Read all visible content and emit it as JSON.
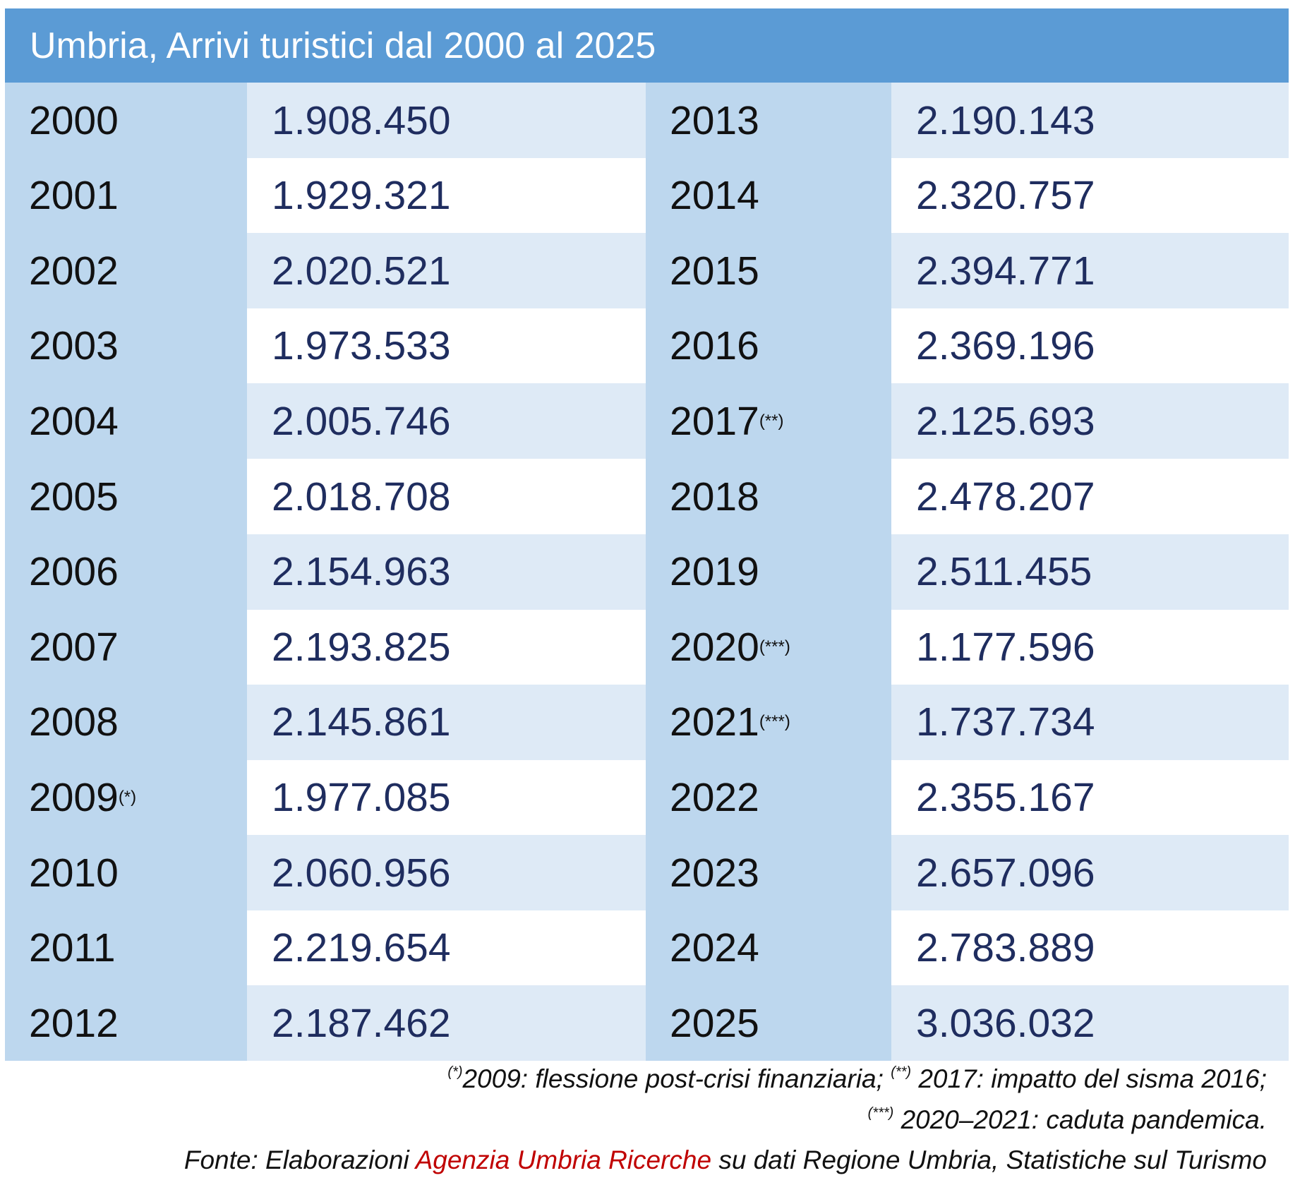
{
  "header": {
    "title": "Umbria, Arrivi turistici dal 2000 al 2025"
  },
  "table": {
    "rows": [
      {
        "year": "2000",
        "value": "1.908.450"
      },
      {
        "year": "2001",
        "value": "1.929.321"
      },
      {
        "year": "2002",
        "value": "2.020.521"
      },
      {
        "year": "2003",
        "value": "1.973.533"
      },
      {
        "year": "2004",
        "value": "2.005.746"
      },
      {
        "year": "2005",
        "value": "2.018.708"
      },
      {
        "year": "2006",
        "value": "2.154.963"
      },
      {
        "year": "2007",
        "value": "2.193.825"
      },
      {
        "year": "2008",
        "value": "2.145.861"
      },
      {
        "year": "2009",
        "note": "(*)",
        "value": "1.977.085"
      },
      {
        "year": "2010",
        "value": "2.060.956"
      },
      {
        "year": "2011",
        "value": "2.219.654"
      },
      {
        "year": "2012",
        "value": "2.187.462"
      },
      {
        "year": "2013",
        "value": "2.190.143"
      },
      {
        "year": "2014",
        "value": "2.320.757"
      },
      {
        "year": "2015",
        "value": "2.394.771"
      },
      {
        "year": "2016",
        "value": "2.369.196"
      },
      {
        "year": "2017",
        "note": "(**)",
        "value": "2.125.693"
      },
      {
        "year": "2018",
        "value": "2.478.207"
      },
      {
        "year": "2019",
        "value": "2.511.455"
      },
      {
        "year": "2020",
        "note": "(***)",
        "value": "1.177.596"
      },
      {
        "year": "2021",
        "note": "(***)",
        "value": "1.737.734"
      },
      {
        "year": "2022",
        "value": "2.355.167"
      },
      {
        "year": "2023",
        "value": "2.657.096"
      },
      {
        "year": "2024",
        "value": "2.783.889"
      },
      {
        "year": "2025",
        "value": "3.036.032"
      }
    ]
  },
  "footnotes": {
    "line1": {
      "mark1": "(*)",
      "text1": "2009: flessione post-crisi finanziaria; ",
      "mark2": "(**)",
      "text2": " 2017: impatto del sisma 2016;"
    },
    "line2": {
      "mark": "(***)",
      "text": " 2020–2021: caduta pandemica."
    },
    "source": {
      "prefix": "Fonte: Elaborazioni ",
      "agency": "Agenzia Umbria Ricerche",
      "suffix": " su dati Regione Umbria, Statistiche sul Turismo"
    }
  }
}
